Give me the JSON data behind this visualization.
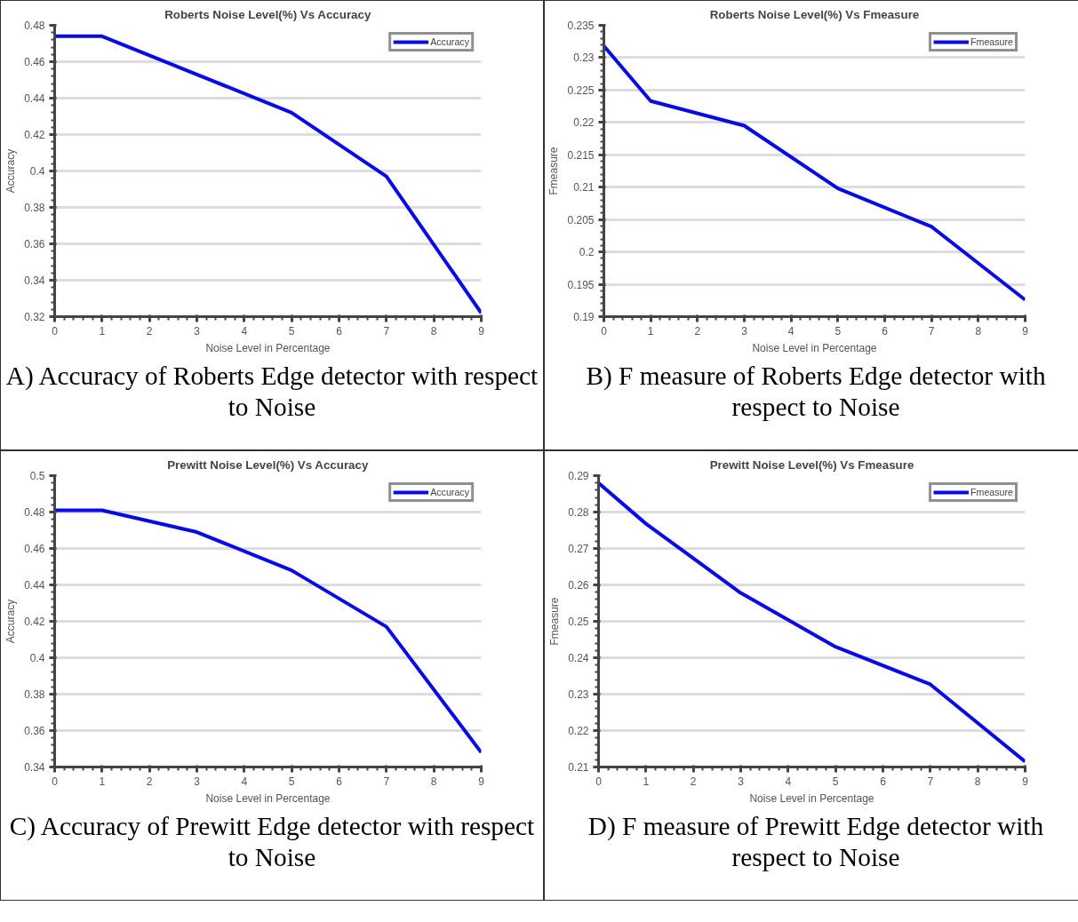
{
  "chart_data": [
    {
      "type": "line",
      "title": "Roberts Noise Level(%) Vs Accuracy",
      "xlabel": "Noise Level in Percentage",
      "ylabel": "Accuracy",
      "x": [
        0,
        1,
        3,
        5,
        7,
        9
      ],
      "series": [
        {
          "name": "Accuracy",
          "color": "#0a0ae6",
          "values": [
            0.474,
            0.474,
            0.453,
            0.432,
            0.397,
            0.322
          ]
        }
      ],
      "xlim": [
        0,
        9
      ],
      "xticks": [
        0,
        1,
        2,
        3,
        4,
        5,
        6,
        7,
        8,
        9
      ],
      "ylim": [
        0.32,
        0.48
      ],
      "yticks": [
        0.32,
        0.34,
        0.36,
        0.38,
        0.4,
        0.42,
        0.44,
        0.46,
        0.48
      ],
      "grid": "y",
      "legend": "top right",
      "marker": "none",
      "line_style": "solid",
      "annotations": [
        "A) Accuracy of Roberts Edge detector with respect to Noise"
      ]
    },
    {
      "type": "line",
      "title": "Roberts Noise Level(%) Vs Fmeasure",
      "xlabel": "Noise Level in Percentage",
      "ylabel": "Fmeasure",
      "x": [
        0,
        1,
        3,
        5,
        7,
        9
      ],
      "series": [
        {
          "name": "Fmeasure",
          "color": "#0a0ae6",
          "values": [
            0.2318,
            0.2233,
            0.2195,
            0.2098,
            0.2039,
            0.1926
          ]
        }
      ],
      "xlim": [
        0,
        9
      ],
      "xticks": [
        0,
        1,
        2,
        3,
        4,
        5,
        6,
        7,
        8,
        9
      ],
      "ylim": [
        0.19,
        0.235
      ],
      "yticks": [
        0.19,
        0.195,
        0.2,
        0.205,
        0.21,
        0.215,
        0.22,
        0.225,
        0.23,
        0.235
      ],
      "grid": "y",
      "legend": "top right",
      "marker": "none",
      "line_style": "solid",
      "annotations": [
        "B) F measure of Roberts Edge detector with respect to Noise"
      ]
    },
    {
      "type": "line",
      "title": "Prewitt Noise Level(%) Vs Accuracy",
      "xlabel": "Noise Level in Percentage",
      "ylabel": "Accuracy",
      "x": [
        0,
        1,
        3,
        5,
        7,
        9
      ],
      "series": [
        {
          "name": "Accuracy",
          "color": "#0a0ae6",
          "values": [
            0.481,
            0.481,
            0.469,
            0.448,
            0.417,
            0.348
          ]
        }
      ],
      "xlim": [
        0,
        9
      ],
      "xticks": [
        0,
        1,
        2,
        3,
        4,
        5,
        6,
        7,
        8,
        9
      ],
      "ylim": [
        0.34,
        0.5
      ],
      "yticks": [
        0.34,
        0.36,
        0.38,
        0.4,
        0.42,
        0.44,
        0.46,
        0.48,
        0.5
      ],
      "grid": "y",
      "legend": "top right",
      "marker": "none",
      "line_style": "solid",
      "annotations": [
        "C) Accuracy of Prewitt Edge detector with respect to Noise"
      ]
    },
    {
      "type": "line",
      "title": "Prewitt Noise Level(%) Vs Fmeasure",
      "xlabel": "Noise Level in Percentage",
      "ylabel": "Fmeasure",
      "x": [
        0,
        1,
        3,
        5,
        7,
        9
      ],
      "series": [
        {
          "name": "Fmeasure",
          "color": "#0a0ae6",
          "values": [
            0.288,
            0.2768,
            0.2578,
            0.243,
            0.2327,
            0.2115
          ]
        }
      ],
      "xlim": [
        0,
        9
      ],
      "xticks": [
        0,
        1,
        2,
        3,
        4,
        5,
        6,
        7,
        8,
        9
      ],
      "ylim": [
        0.21,
        0.29
      ],
      "yticks": [
        0.21,
        0.22,
        0.23,
        0.24,
        0.25,
        0.26,
        0.27,
        0.28,
        0.29
      ],
      "grid": "y",
      "legend": "top right",
      "marker": "none",
      "line_style": "solid",
      "annotations": [
        "D) F measure of Prewitt Edge detector with respect to Noise"
      ]
    }
  ]
}
